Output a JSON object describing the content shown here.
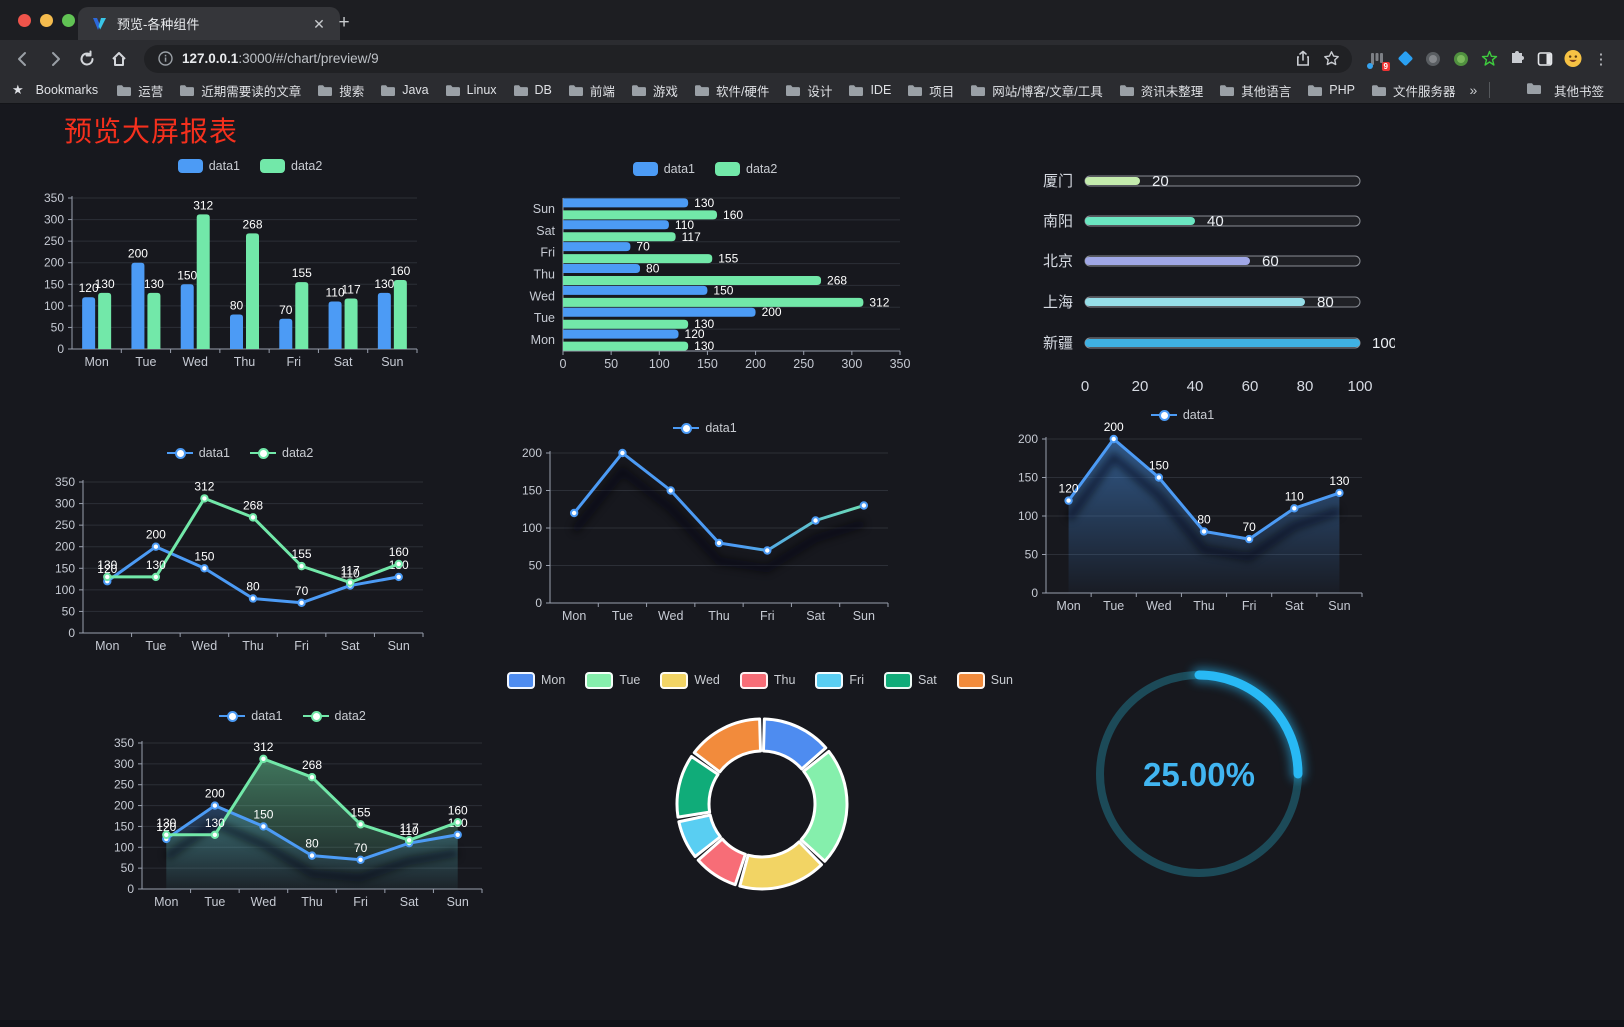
{
  "browser": {
    "traffic_lights": [
      "#EE544B",
      "#F5BC4E",
      "#61C354"
    ],
    "tab": {
      "title": "预览-各种组件",
      "favicon_colors": [
        "#2c68d9",
        "#39c6e8"
      ]
    },
    "url": {
      "host": "127.0.0.1",
      "rest": ":3000/#/chart/preview/9"
    },
    "ext_badge": "9",
    "bookmarks_label": "Bookmarks",
    "bookmarks": [
      "运营",
      "近期需要读的文章",
      "搜索",
      "Java",
      "Linux",
      "DB",
      "前端",
      "游戏",
      "软件/硬件",
      "设计",
      "IDE",
      "项目",
      "网站/博客/文章/工具",
      "资讯未整理",
      "其他语言",
      "PHP",
      "文件服务器"
    ],
    "bookmarks_overflow": "»",
    "other_bookmarks": "其他书签"
  },
  "page": {
    "title": "预览大屏报表",
    "title_color": "#F5301D",
    "background": "#17181e"
  },
  "chart_data": [
    {
      "id": "grouped-bar",
      "type": "bar",
      "categories": [
        "Mon",
        "Tue",
        "Wed",
        "Thu",
        "Fri",
        "Sat",
        "Sun"
      ],
      "series": [
        {
          "name": "data1",
          "color": "#4C9BF5",
          "values": [
            120,
            200,
            150,
            80,
            70,
            110,
            130
          ]
        },
        {
          "name": "data2",
          "color": "#72E8A9",
          "values": [
            130,
            130,
            312,
            268,
            155,
            117,
            160
          ]
        }
      ],
      "ylim": [
        0,
        350
      ],
      "ytick_step": 50,
      "grid": true,
      "legend_position": "top",
      "value_labels": true
    },
    {
      "id": "horizontal-bar",
      "type": "bar",
      "orientation": "horizontal",
      "categories_top_to_bottom": [
        "Sun",
        "Sat",
        "Fri",
        "Thu",
        "Wed",
        "Tue",
        "Mon"
      ],
      "series": [
        {
          "name": "data1",
          "color": "#4C9BF5",
          "values": [
            130,
            110,
            70,
            80,
            150,
            200,
            120
          ]
        },
        {
          "name": "data2",
          "color": "#72E8A9",
          "values": [
            160,
            117,
            155,
            268,
            312,
            130,
            130
          ]
        }
      ],
      "xlim": [
        0,
        350
      ],
      "xticks": [
        0,
        50,
        100,
        150,
        200,
        250,
        300,
        350
      ],
      "grid": true,
      "value_labels": true
    },
    {
      "id": "progress",
      "type": "bar",
      "subtype": "progress-pills",
      "items": [
        {
          "label": "厦门",
          "value": 20,
          "color": "#C4EBAD"
        },
        {
          "label": "南阳",
          "value": 40,
          "color": "#6BE6C1"
        },
        {
          "label": "北京",
          "value": 60,
          "color": "#A0A7E6"
        },
        {
          "label": "上海",
          "value": 80,
          "color": "#96DEE8"
        },
        {
          "label": "新疆",
          "value": 100,
          "color": "#3FB1E3"
        }
      ],
      "xlim": [
        0,
        100
      ],
      "xticks": [
        0,
        20,
        40,
        60,
        80,
        100
      ],
      "value_labels": true
    },
    {
      "id": "line-two",
      "type": "line",
      "categories": [
        "Mon",
        "Tue",
        "Wed",
        "Thu",
        "Fri",
        "Sat",
        "Sun"
      ],
      "series": [
        {
          "name": "data1",
          "color": "#4C9BF5",
          "values": [
            120,
            200,
            150,
            80,
            70,
            110,
            130
          ]
        },
        {
          "name": "data2",
          "color": "#72E8A9",
          "values": [
            130,
            130,
            312,
            268,
            155,
            117,
            160
          ]
        }
      ],
      "ylim": [
        0,
        350
      ],
      "ytick_step": 50,
      "grid": true,
      "value_labels": true,
      "markers": true
    },
    {
      "id": "line-gradient",
      "type": "line",
      "categories": [
        "Mon",
        "Tue",
        "Wed",
        "Thu",
        "Fri",
        "Sat",
        "Sun"
      ],
      "series": [
        {
          "name": "data1",
          "gradient": [
            "#4C9BF5",
            "#72E8A9"
          ],
          "color": "#4C9BF5",
          "values": [
            120,
            200,
            150,
            80,
            70,
            110,
            130
          ],
          "shadow": true
        }
      ],
      "ylim": [
        0,
        200
      ],
      "ytick_step": 50,
      "grid": true,
      "value_labels": false,
      "markers": true
    },
    {
      "id": "line-area",
      "type": "line",
      "categories": [
        "Mon",
        "Tue",
        "Wed",
        "Thu",
        "Fri",
        "Sat",
        "Sun"
      ],
      "series": [
        {
          "name": "data1",
          "color": "#4C9BF5",
          "values": [
            120,
            200,
            150,
            80,
            70,
            110,
            130
          ],
          "area": true,
          "shadow": true
        }
      ],
      "ylim": [
        0,
        200
      ],
      "ytick_step": 50,
      "grid": true,
      "value_labels": true,
      "markers": true
    },
    {
      "id": "line-area-two",
      "type": "line",
      "categories": [
        "Mon",
        "Tue",
        "Wed",
        "Thu",
        "Fri",
        "Sat",
        "Sun"
      ],
      "series": [
        {
          "name": "data1",
          "color": "#4C9BF5",
          "values": [
            120,
            200,
            150,
            80,
            70,
            110,
            130
          ],
          "area": true,
          "shadow": true
        },
        {
          "name": "data2",
          "color": "#72E8A9",
          "values": [
            130,
            130,
            312,
            268,
            155,
            117,
            160
          ],
          "area": true
        }
      ],
      "ylim": [
        0,
        350
      ],
      "ytick_step": 50,
      "grid": true,
      "value_labels": true,
      "markers": true
    },
    {
      "id": "donut",
      "type": "pie",
      "inner_radius_ratio": 0.62,
      "items": [
        {
          "label": "Mon",
          "value": 120,
          "color": "#4E8CF0"
        },
        {
          "label": "Tue",
          "value": 200,
          "color": "#85EFAC"
        },
        {
          "label": "Wed",
          "value": 150,
          "color": "#F2D464"
        },
        {
          "label": "Thu",
          "value": 80,
          "color": "#F76D77"
        },
        {
          "label": "Fri",
          "value": 70,
          "color": "#59CEF2"
        },
        {
          "label": "Sat",
          "value": 110,
          "color": "#10AC79"
        },
        {
          "label": "Sun",
          "value": 130,
          "color": "#F28B3C"
        }
      ],
      "legend_position": "top",
      "border_color": "#FFFFFF"
    },
    {
      "id": "gauge",
      "type": "gauge",
      "percent": 25,
      "display": "25.00%",
      "track_color": "#1C4A58",
      "progress_color": "#28B9F5",
      "text_color": "#41B5F1"
    }
  ]
}
